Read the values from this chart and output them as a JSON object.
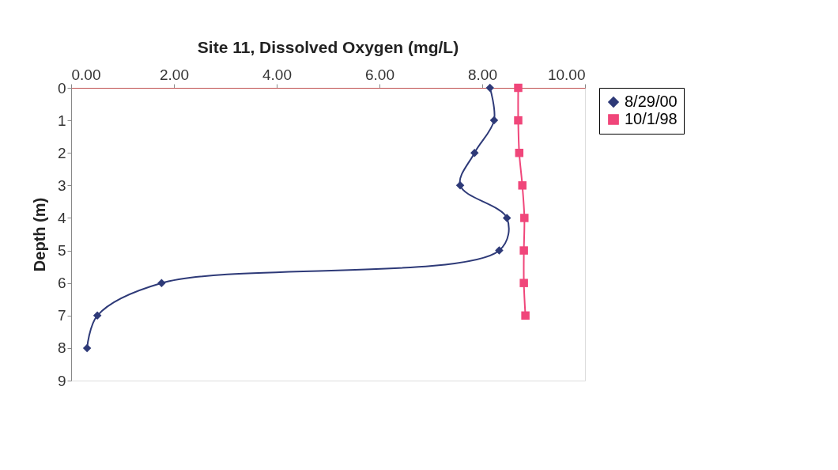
{
  "chart_data": {
    "type": "line",
    "title": "Site 11, Dissolved Oxygen (mg/L)",
    "ylabel": "Depth (m)",
    "xlim": [
      0,
      10
    ],
    "xticks": [
      {
        "value": 0,
        "label": "0.00"
      },
      {
        "value": 2,
        "label": "2.00"
      },
      {
        "value": 4,
        "label": "4.00"
      },
      {
        "value": 6,
        "label": "6.00"
      },
      {
        "value": 8,
        "label": "8.00"
      },
      {
        "value": 10,
        "label": "10.00"
      }
    ],
    "ylim": [
      9,
      0
    ],
    "yticks": [
      0,
      1,
      2,
      3,
      4,
      5,
      6,
      7,
      8,
      9
    ],
    "grid": false,
    "legend": "right",
    "series": [
      {
        "name": "8/29/00",
        "color": "#2e3a78",
        "marker": "diamond",
        "x": [
          8.15,
          8.23,
          7.85,
          7.57,
          8.48,
          8.33,
          1.76,
          0.51,
          0.31
        ],
        "values": [
          0,
          1,
          2,
          3,
          4,
          5,
          6,
          7,
          8
        ]
      },
      {
        "name": "10/1/98",
        "color": "#f0467a",
        "marker": "square",
        "x": [
          8.7,
          8.7,
          8.72,
          8.78,
          8.82,
          8.81,
          8.81,
          8.84
        ],
        "values": [
          0,
          1,
          2,
          3,
          4,
          5,
          6,
          7
        ]
      }
    ]
  }
}
